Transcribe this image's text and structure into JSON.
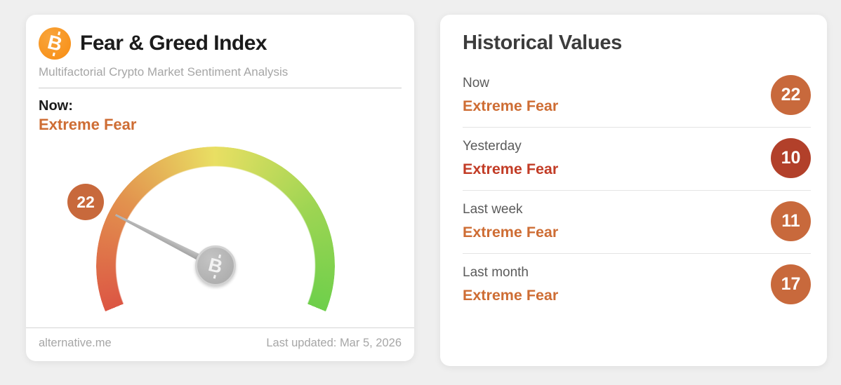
{
  "chart_data": {
    "type": "gauge",
    "title": "Fear & Greed Index",
    "value": 22,
    "min": 0,
    "max": 100,
    "classification": "Extreme Fear",
    "arc_span_degrees": 225,
    "arc_gradient": [
      "#dc5644",
      "#e2924e",
      "#e9df63",
      "#9fd553",
      "#6ecf4b"
    ],
    "historical": [
      {
        "period": "Now",
        "value": 22,
        "classification": "Extreme Fear"
      },
      {
        "period": "Yesterday",
        "value": 10,
        "classification": "Extreme Fear"
      },
      {
        "period": "Last week",
        "value": 11,
        "classification": "Extreme Fear"
      },
      {
        "period": "Last month",
        "value": 17,
        "classification": "Extreme Fear"
      }
    ]
  },
  "colors": {
    "page_background": "#efefef",
    "bitcoin_orange": "#f7941e",
    "sentiment_orange": "#ce6d34",
    "sentiment_red": "#c23c26",
    "badge_orange": "#c8693c",
    "badge_dark_red": "#b2402a",
    "needle_gray": "#b3b3b3"
  },
  "gauge_card": {
    "logo_icon": "bitcoin-icon",
    "title": "Fear & Greed Index",
    "subtitle": "Multifactorial Crypto Market Sentiment Analysis",
    "now_label": "Now:",
    "now_sentiment": "Extreme Fear",
    "now_sentiment_color": "#ce6d34",
    "gauge_value": "22",
    "gauge_value_badge_color": "#c8693c",
    "footer_source": "alternative.me",
    "footer_last_updated": "Last updated: Mar 5, 2026"
  },
  "history_card": {
    "title": "Historical Values",
    "rows": [
      {
        "label": "Now",
        "sentiment": "Extreme Fear",
        "sentiment_color": "#ce6d34",
        "value": "22",
        "badge_color": "#c8693c"
      },
      {
        "label": "Yesterday",
        "sentiment": "Extreme Fear",
        "sentiment_color": "#c23c26",
        "value": "10",
        "badge_color": "#b2402a"
      },
      {
        "label": "Last week",
        "sentiment": "Extreme Fear",
        "sentiment_color": "#ce6d34",
        "value": "11",
        "badge_color": "#c8693c"
      },
      {
        "label": "Last month",
        "sentiment": "Extreme Fear",
        "sentiment_color": "#ce6d34",
        "value": "17",
        "badge_color": "#c8693c"
      }
    ]
  }
}
